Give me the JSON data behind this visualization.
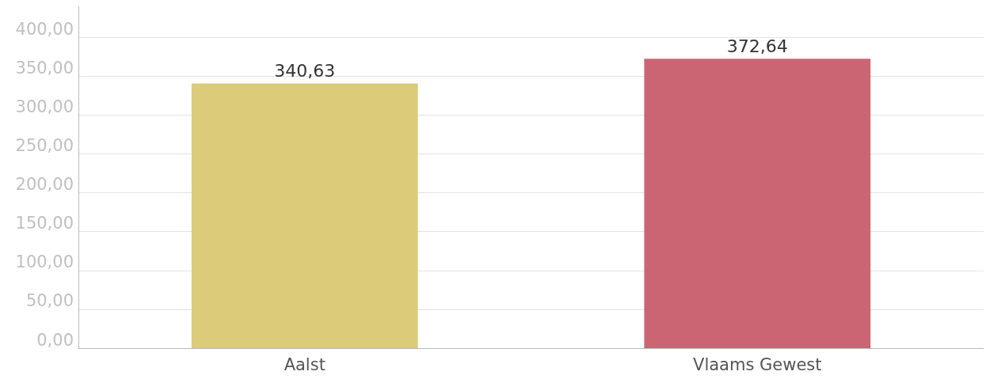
{
  "chart_data": {
    "type": "bar",
    "categories": [
      "Aalst",
      "Vlaams Gewest"
    ],
    "values": [
      340.63,
      372.64
    ],
    "colors": [
      "#dccb78",
      "#cb6574"
    ],
    "value_labels": [
      "340,63",
      "372,64"
    ],
    "ylim": [
      0,
      440
    ],
    "yticks": [
      {
        "value": 0,
        "label": "0,00"
      },
      {
        "value": 50,
        "label": "50,00"
      },
      {
        "value": 100,
        "label": "100,00"
      },
      {
        "value": 150,
        "label": "150,00"
      },
      {
        "value": 200,
        "label": "200,00"
      },
      {
        "value": 250,
        "label": "250,00"
      },
      {
        "value": 300,
        "label": "300,00"
      },
      {
        "value": 350,
        "label": "350,00"
      },
      {
        "value": 400,
        "label": "400,00"
      }
    ],
    "grid": "y"
  }
}
